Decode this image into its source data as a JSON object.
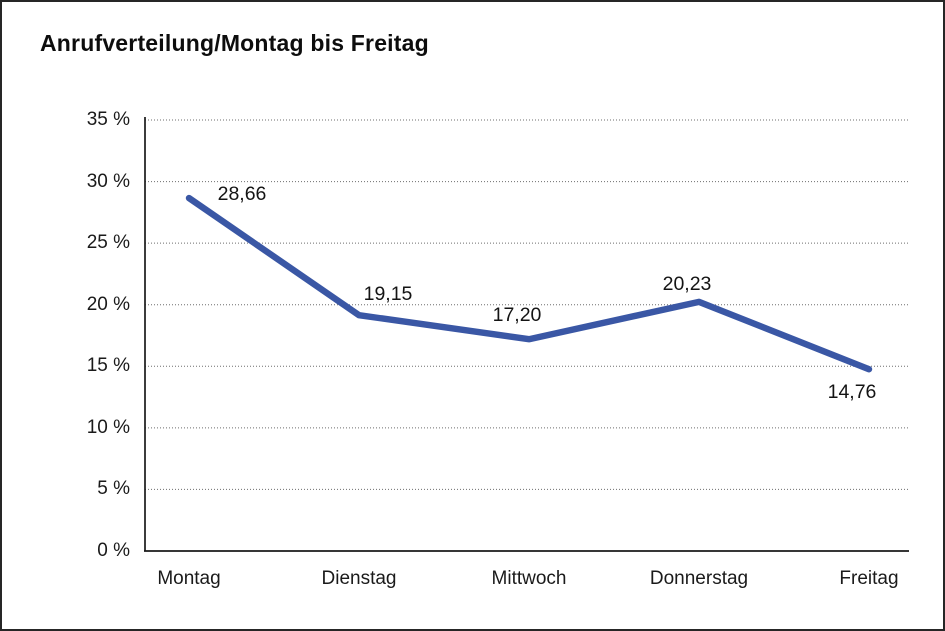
{
  "window": {
    "background_color": "#ffffff",
    "border_color": "#262626"
  },
  "title": "Anrufverteilung/Montag bis Freitag",
  "chart_data": {
    "type": "line",
    "title": "Anrufverteilung/Montag bis Freitag",
    "categories": [
      "Montag",
      "Dienstag",
      "Mittwoch",
      "Donnerstag",
      "Freitag"
    ],
    "values": [
      28.66,
      19.15,
      17.2,
      20.23,
      14.76
    ],
    "point_labels": [
      "28,66",
      "19,15",
      "17,20",
      "20,23",
      "14,76"
    ],
    "series_name": "Anrufverteilung",
    "xlabel": "",
    "ylabel": "",
    "ylim": [
      0,
      35
    ],
    "y_tick_step": 5,
    "y_tick_labels": [
      "0 %",
      "5 %",
      "10 %",
      "15 %",
      "20 %",
      "25 %",
      "30 %",
      "35 %"
    ],
    "grid": "horizontal-dotted",
    "legend_position": "none",
    "line_color": "#3A57A5",
    "label_color": "#141414",
    "axis_color": "#1a1a1a"
  }
}
